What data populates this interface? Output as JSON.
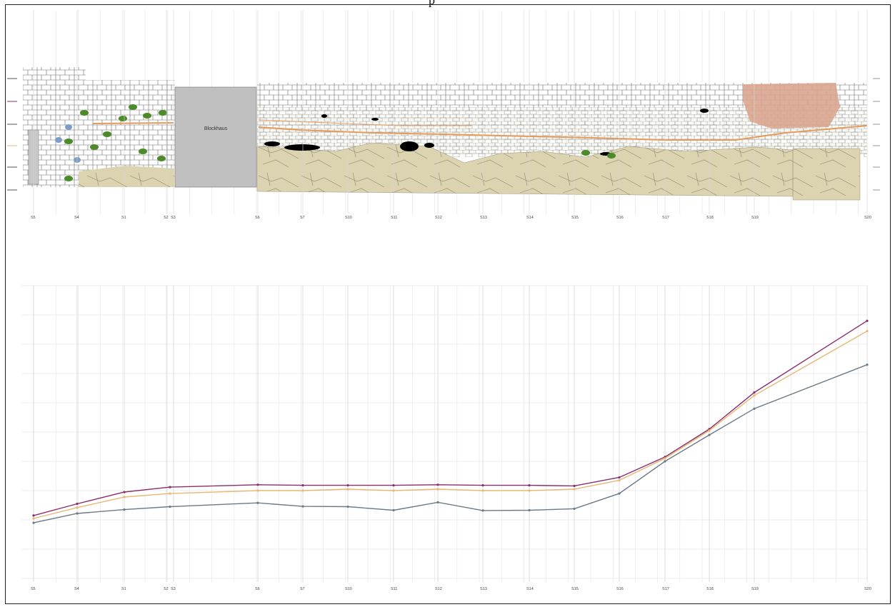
{
  "top_mark": "p",
  "section_labels": [
    "S5",
    "S4",
    "S1",
    "S2",
    "S3",
    "S6",
    "S7",
    "S10",
    "S11",
    "S12",
    "S13",
    "S14",
    "S15",
    "S16",
    "S17",
    "S18",
    "S19",
    "S20"
  ],
  "elevation_plot": {
    "building_label": "Blockhaus",
    "colors": {
      "stone_fill": "#ffffff",
      "stone_outline": "#6a6a6a",
      "ground": "#dcd3b0",
      "blockhaus": "#c0c0c0",
      "brick": "#d9a58e",
      "moss": "#4d8a2a",
      "band": "#e69a5a",
      "void": "#000000",
      "blue": "#7a9ec8"
    }
  },
  "chart_data": {
    "type": "line",
    "x": [
      "S5",
      "S4",
      "S1",
      "S2 S3",
      "S6",
      "S7",
      "S10",
      "S11",
      "S12",
      "S13",
      "S14",
      "S15",
      "S16",
      "S17",
      "S18",
      "S19",
      "S20"
    ],
    "series": [
      {
        "color": "#8b2e6d",
        "values": [
          5.15,
          5.55,
          5.95,
          6.12,
          6.2,
          6.18,
          6.18,
          6.18,
          6.2,
          6.18,
          6.18,
          6.16,
          6.45,
          7.15,
          8.1,
          9.35,
          11.8
        ]
      },
      {
        "color": "#e6b873",
        "values": [
          5.05,
          5.42,
          5.78,
          5.9,
          6.0,
          6.0,
          6.05,
          6.0,
          6.05,
          6.0,
          6.0,
          6.05,
          6.35,
          7.1,
          8.05,
          9.25,
          11.45
        ]
      },
      {
        "color": "#6b7a84",
        "values": [
          4.9,
          5.22,
          5.35,
          5.45,
          5.58,
          5.46,
          5.45,
          5.33,
          5.6,
          5.32,
          5.33,
          5.38,
          5.9,
          7.0,
          7.9,
          8.8,
          10.3
        ]
      }
    ],
    "ylim": [
      3,
      13
    ],
    "grid": true
  }
}
